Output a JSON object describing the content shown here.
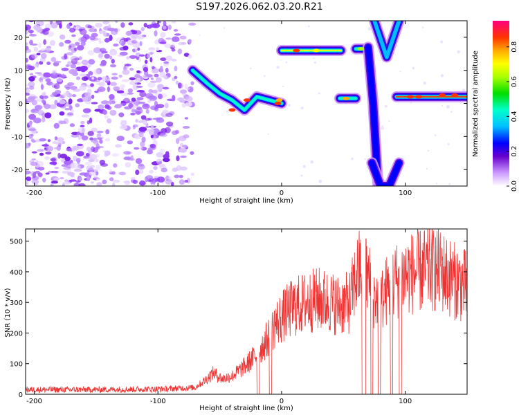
{
  "title": "S197.2026.062.03.20.R21",
  "chart_data": [
    {
      "type": "heatmap",
      "title": "S197.2026.062.03.20.R21",
      "xlabel": "Height of straight line (km)",
      "ylabel": "Frequency (Hz)",
      "xlim": [
        -207,
        150
      ],
      "ylim": [
        -25,
        25
      ],
      "xticks": [
        -200,
        -100,
        0,
        100
      ],
      "yticks": [
        -20,
        -10,
        0,
        10,
        20
      ],
      "colorbar": {
        "label": "Normalized spectral amplitude",
        "range": [
          0.0,
          0.95
        ],
        "ticks": [
          "0.0",
          "0.2",
          "0.4",
          "0.6",
          "0.8"
        ]
      },
      "features": [
        {
          "name": "noise-region",
          "x_range": [
            -207,
            -72
          ],
          "f_range": [
            -25,
            25
          ],
          "amplitude": 0.15
        },
        {
          "name": "descending-tone",
          "x": [
            -72,
            -60,
            -50,
            -40,
            -30,
            -20,
            -10,
            0
          ],
          "f": [
            10,
            6,
            3,
            1,
            -2,
            2,
            1,
            0
          ],
          "amplitude": 0.55
        },
        {
          "name": "tone-16hz",
          "x_range": [
            0,
            48
          ],
          "f": 16,
          "amplitude": 0.75
        },
        {
          "name": "tone-1hz-mid",
          "x_range": [
            47,
            60
          ],
          "f": 1.5,
          "amplitude": 0.5
        },
        {
          "name": "tone-16hz-short",
          "x_range": [
            60,
            68
          ],
          "f": 16.5,
          "amplitude": 0.5
        },
        {
          "name": "tone-2hz-right",
          "x_range": [
            93,
            150
          ],
          "f": 2,
          "amplitude": 0.9
        },
        {
          "name": "v-sweep",
          "x": [
            75,
            85,
            95
          ],
          "f": [
            25,
            14,
            25
          ],
          "amplitude": 0.4
        },
        {
          "name": "vertical-streak-low",
          "x": [
            70,
            74,
            78
          ],
          "f": [
            17,
            0,
            -25
          ],
          "amplitude": 0.3
        },
        {
          "name": "lower-vshape",
          "x": [
            73,
            80,
            87,
            95
          ],
          "f": [
            -18,
            -25,
            -25,
            -18
          ],
          "amplitude": 0.3
        }
      ]
    },
    {
      "type": "line",
      "xlabel": "Height of straight line (km)",
      "ylabel": "SNR (10 * v/v)",
      "xlim": [
        -207,
        150
      ],
      "ylim": [
        0,
        540
      ],
      "xticks": [
        -200,
        -100,
        0,
        100
      ],
      "yticks": [
        0,
        100,
        200,
        300,
        400,
        500
      ],
      "series": [
        {
          "name": "SNR",
          "color": "#ee3333",
          "x": [
            -207,
            -180,
            -150,
            -120,
            -100,
            -90,
            -80,
            -70,
            -62,
            -55,
            -48,
            -40,
            -30,
            -20,
            -10,
            -5,
            0,
            5,
            10,
            20,
            30,
            40,
            48,
            55,
            60,
            65,
            70,
            75,
            80,
            85,
            90,
            95,
            100,
            110,
            120,
            130,
            140,
            150
          ],
          "y": [
            15,
            15,
            15,
            16,
            17,
            18,
            20,
            22,
            45,
            70,
            50,
            60,
            90,
            130,
            190,
            230,
            250,
            270,
            285,
            300,
            310,
            300,
            290,
            300,
            380,
            420,
            380,
            320,
            300,
            340,
            360,
            380,
            390,
            400,
            410,
            400,
            370,
            350
          ],
          "dropouts_to_zero": [
            [
              -20,
              -18
            ],
            [
              -10,
              -8
            ],
            [
              65,
              68
            ],
            [
              72,
              74
            ],
            [
              78,
              80
            ],
            [
              88,
              90
            ],
            [
              95,
              97
            ]
          ]
        }
      ]
    }
  ],
  "colors": {
    "snr_line": "#ee3333",
    "axes": "#000000"
  }
}
